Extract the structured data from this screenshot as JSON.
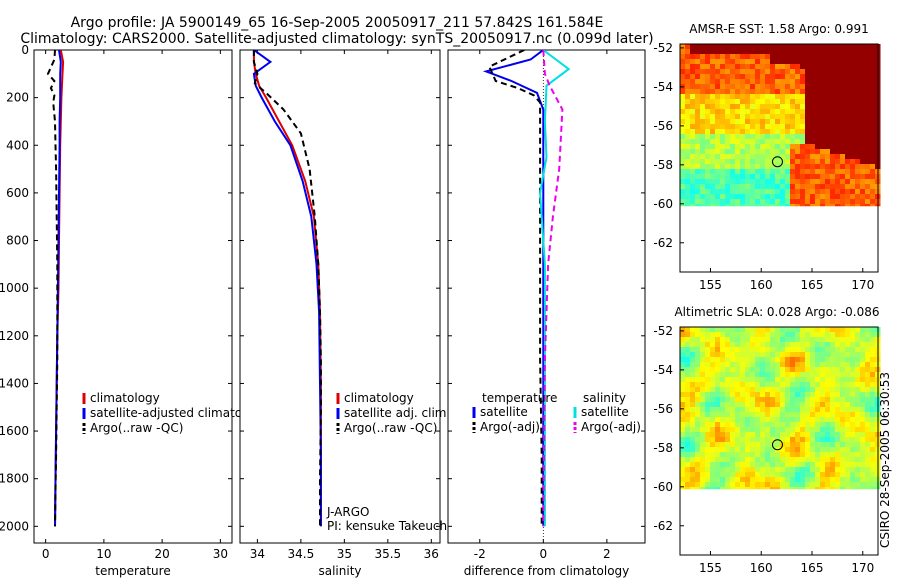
{
  "header": {
    "title_line1": "Argo profile: JA 5900149_65 16-Sep-2005 20050917_211 57.842S 161.584E",
    "title_line2": "Climatology: CARS2000. Satellite-adjusted climatology: synTS_20050917.nc (0.099d later)"
  },
  "side_label": "CSIRO 28-Sep-2005 06:30:53",
  "colors": {
    "climatology": "#dd0000",
    "satellite": "#0000ee",
    "argo": "#000000",
    "sat_sal": "#00e0e0",
    "argo_sal": "#ee00ee",
    "land_bg": "#ffffff"
  },
  "chart_data": [
    {
      "type": "line",
      "name": "temperature_profile",
      "xlabel": "temperature",
      "xlim": [
        -2,
        32
      ],
      "ylim": [
        2070,
        0
      ],
      "xticks": [
        "0",
        "10",
        "20",
        "30"
      ],
      "yticks": [
        "0",
        "200",
        "400",
        "600",
        "800",
        "1000",
        "1200",
        "1400",
        "1600",
        "1800",
        "2000"
      ],
      "legend": [
        "climatology",
        "satellite-adjusted climatology",
        "Argo(..raw -QC)"
      ],
      "series": [
        {
          "name": "climatology",
          "color": "#dd0000",
          "dash": false,
          "x": [
            2.6,
            3.0,
            2.9,
            2.7,
            2.6,
            2.5,
            2.4,
            2.3,
            2.2,
            2.0,
            1.9,
            1.8,
            1.7,
            1.6
          ],
          "y": [
            0,
            50,
            100,
            200,
            300,
            400,
            600,
            800,
            1000,
            1200,
            1400,
            1600,
            1800,
            2000
          ]
        },
        {
          "name": "satellite-adjusted climatology",
          "color": "#0000ee",
          "dash": false,
          "x": [
            2.3,
            2.6,
            2.5,
            2.5,
            2.4,
            2.4,
            2.3,
            2.2,
            2.1,
            2.0,
            1.9,
            1.8,
            1.7,
            1.6
          ],
          "y": [
            0,
            50,
            100,
            200,
            300,
            400,
            600,
            800,
            1000,
            1200,
            1400,
            1600,
            1800,
            2000
          ]
        },
        {
          "name": "Argo(..raw -QC)",
          "color": "#000000",
          "dash": true,
          "x": [
            1.6,
            1.5,
            0.4,
            1.5,
            0.9,
            1.5,
            1.3,
            1.6,
            1.7,
            1.8,
            1.9,
            2.0,
            2.0,
            2.0,
            1.9,
            1.8,
            1.7,
            1.6
          ],
          "y": [
            0,
            40,
            100,
            130,
            160,
            190,
            220,
            300,
            400,
            500,
            700,
            900,
            1100,
            1300,
            1500,
            1700,
            1850,
            2000
          ]
        }
      ]
    },
    {
      "type": "line",
      "name": "salinity_profile",
      "xlabel": "salinity",
      "xlim": [
        33.8,
        36.1
      ],
      "ylim": [
        2070,
        0
      ],
      "xticks": [
        "34",
        "34.5",
        "35",
        "35.5",
        "36"
      ],
      "legend": [
        "climatology",
        "satellite adj. clim.",
        "Argo(..raw -QC)"
      ],
      "annotations": [
        "J-ARGO",
        "PI: kensuke Takeuchi"
      ],
      "series": [
        {
          "name": "climatology",
          "color": "#dd0000",
          "dash": false,
          "x": [
            33.96,
            33.96,
            33.98,
            34.02,
            34.1,
            34.25,
            34.4,
            34.55,
            34.65,
            34.7,
            34.72,
            34.73,
            34.73,
            34.73
          ],
          "y": [
            0,
            50,
            100,
            150,
            200,
            300,
            400,
            550,
            700,
            900,
            1100,
            1400,
            1700,
            2000
          ]
        },
        {
          "name": "satellite adj. clim.",
          "color": "#0000ee",
          "dash": false,
          "x": [
            33.96,
            34.15,
            33.96,
            33.98,
            34.05,
            34.2,
            34.38,
            34.52,
            34.62,
            34.68,
            34.71,
            34.72,
            34.73,
            34.73
          ],
          "y": [
            0,
            50,
            100,
            150,
            200,
            300,
            400,
            550,
            700,
            900,
            1100,
            1400,
            1700,
            2000
          ]
        },
        {
          "name": "Argo(..raw -QC)",
          "color": "#000000",
          "dash": true,
          "x": [
            33.96,
            33.96,
            34.0,
            33.97,
            34.1,
            34.3,
            34.5,
            34.6,
            34.66,
            34.7,
            34.72,
            34.73,
            34.73,
            34.72,
            34.72
          ],
          "y": [
            0,
            50,
            100,
            140,
            180,
            250,
            350,
            500,
            700,
            900,
            1100,
            1300,
            1500,
            1800,
            2000
          ]
        }
      ]
    },
    {
      "type": "line",
      "name": "difference_profile",
      "xlabel": "difference from climatology",
      "xlim": [
        -3,
        3.2
      ],
      "ylim": [
        2070,
        0
      ],
      "xticks": [
        "-2",
        "0",
        "2"
      ],
      "legend_headers": [
        "temperature",
        "salinity"
      ],
      "legend": [
        "satellite",
        "Argo(-adj)",
        "satellite",
        "Argo(-adj)"
      ],
      "series": [
        {
          "name": "temperature satellite",
          "color": "#0000ee",
          "dash": false,
          "x": [
            0,
            -0.4,
            -1.8,
            -1.0,
            -0.2,
            0.0,
            0.0,
            0.0,
            0.0,
            0.0
          ],
          "y": [
            0,
            40,
            90,
            130,
            180,
            250,
            400,
            800,
            1500,
            2000
          ]
        },
        {
          "name": "temperature Argo(-adj)",
          "color": "#000000",
          "dash": true,
          "x": [
            -0.6,
            -1.7,
            -1.5,
            -0.8,
            -0.3,
            -0.1,
            -0.1,
            -0.1,
            -0.1,
            -0.1,
            -0.05,
            -0.05
          ],
          "y": [
            0,
            70,
            130,
            160,
            190,
            220,
            400,
            700,
            1000,
            1300,
            1700,
            2000
          ]
        },
        {
          "name": "salinity satellite",
          "color": "#00e0e0",
          "dash": false,
          "x": [
            0,
            0.8,
            0.1,
            0.05,
            0.1,
            -0.1,
            -0.05,
            0.05,
            0.05,
            0.05
          ],
          "y": [
            0,
            80,
            150,
            300,
            450,
            600,
            700,
            900,
            1500,
            2000
          ]
        },
        {
          "name": "salinity Argo(-adj)",
          "color": "#ee00ee",
          "dash": true,
          "x": [
            0,
            0.05,
            0.2,
            0.6,
            0.5,
            0.3,
            0.15,
            0.05,
            0.0
          ],
          "y": [
            0,
            100,
            150,
            250,
            500,
            700,
            900,
            1300,
            2000
          ]
        }
      ]
    },
    {
      "type": "heatmap",
      "name": "amsr_sst_map",
      "title": "AMSR-E SST: 1.58 Argo: 0.991",
      "xlim": [
        152,
        171.5
      ],
      "ylim": [
        -63.5,
        -51.8
      ],
      "xticks": [
        "155",
        "160",
        "165",
        "170"
      ],
      "yticks": [
        "-52",
        "-54",
        "-56",
        "-58",
        "-60",
        "-62"
      ],
      "float_marker": [
        161.6,
        -57.84
      ]
    },
    {
      "type": "heatmap",
      "name": "altimetric_sla_map",
      "title": "Altimetric SLA: 0.028 Argo: -0.086",
      "xlim": [
        152,
        171.5
      ],
      "ylim": [
        -63.5,
        -51.8
      ],
      "xticks": [
        "155",
        "160",
        "165",
        "170"
      ],
      "yticks": [
        "-52",
        "-54",
        "-56",
        "-58",
        "-60",
        "-62"
      ],
      "float_marker": [
        161.6,
        -57.84
      ]
    }
  ]
}
